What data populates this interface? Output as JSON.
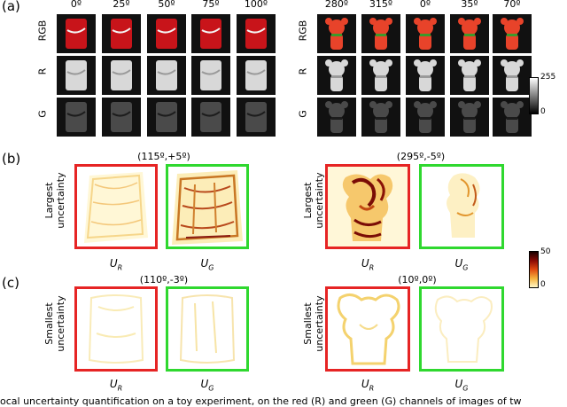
{
  "panels": {
    "a": "(a)",
    "b": "(b)",
    "c": "(c)"
  },
  "panel_a": {
    "left_angles": [
      "0º",
      "25º",
      "50º",
      "75º",
      "100º"
    ],
    "right_angles": [
      "280º",
      "315º",
      "0º",
      "35º",
      "70º"
    ],
    "rows": [
      "RGB",
      "R",
      "G"
    ],
    "colorbar": {
      "max": "255",
      "min": "0"
    }
  },
  "panel_b": {
    "left_coord": "(115º,+5º)",
    "right_coord": "(295º,-5º)",
    "row_label_line1": "Largest",
    "row_label_line2": "uncertainty"
  },
  "panel_c": {
    "left_coord": "(110º,-3º)",
    "right_coord": "(10º,0º)",
    "row_label_line1": "Smallest",
    "row_label_line2": "uncertainty"
  },
  "uncertainty_labels": {
    "u": "U",
    "r": "R",
    "g": "G"
  },
  "heat_colorbar": {
    "max": "50",
    "min": "0"
  },
  "caption": "ocal uncertainty quantification on a toy experiment, on the red (R) and green (G) channels of images of tw"
}
